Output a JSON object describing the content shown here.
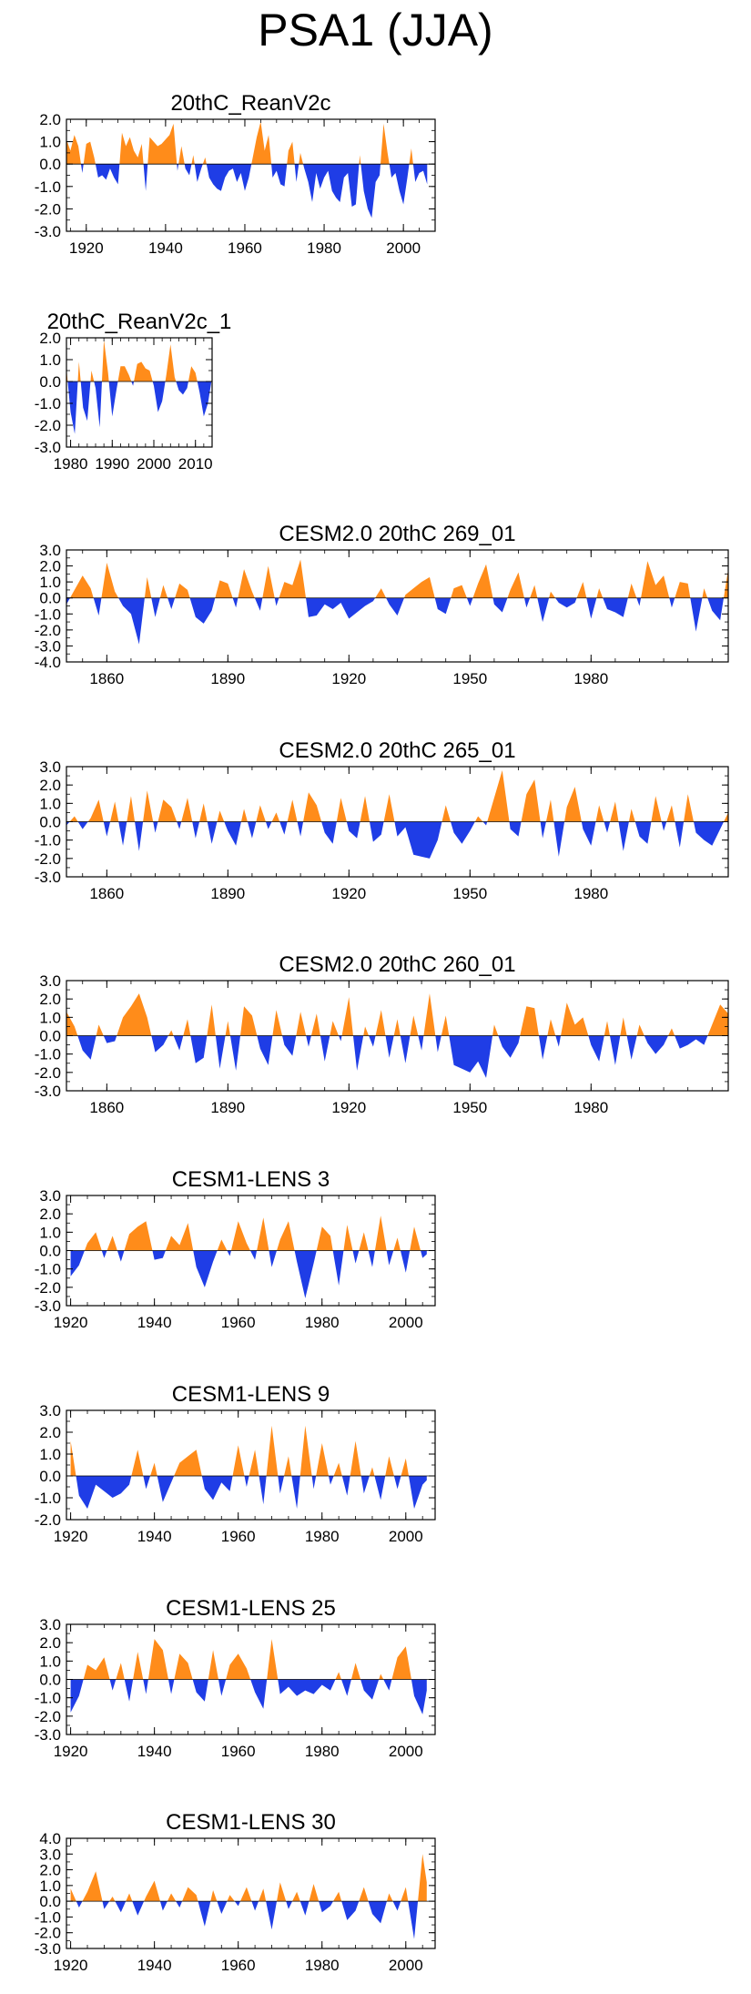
{
  "page_title": "PSA1 (JJA)",
  "colors": {
    "positive": "#ff8c1a",
    "negative": "#1f3de6",
    "axis": "#000000"
  },
  "chart_data": [
    {
      "type": "area",
      "title": "20thC_ReanV2c",
      "xlim": [
        1915,
        2008
      ],
      "ylim": [
        -3.0,
        2.0
      ],
      "y_ticks": [
        "2.0",
        "1.0",
        "0.0",
        "-1.0",
        "-2.0",
        "-3.0"
      ],
      "x_ticks": [
        "1920",
        "1940",
        "1960",
        "1980",
        "2000"
      ],
      "x": [
        1915,
        1916,
        1917,
        1918,
        1919,
        1920,
        1921,
        1922,
        1923,
        1924,
        1925,
        1926,
        1927,
        1928,
        1929,
        1930,
        1931,
        1932,
        1933,
        1934,
        1935,
        1936,
        1937,
        1938,
        1939,
        1940,
        1941,
        1942,
        1943,
        1944,
        1945,
        1946,
        1947,
        1948,
        1949,
        1950,
        1951,
        1952,
        1953,
        1954,
        1955,
        1956,
        1957,
        1958,
        1959,
        1960,
        1961,
        1962,
        1963,
        1964,
        1965,
        1966,
        1967,
        1968,
        1969,
        1970,
        1971,
        1972,
        1973,
        1974,
        1975,
        1976,
        1977,
        1978,
        1979,
        1980,
        1981,
        1982,
        1983,
        1984,
        1985,
        1986,
        1987,
        1988,
        1989,
        1990,
        1991,
        1992,
        1993,
        1994,
        1995,
        1996,
        1997,
        1998,
        1999,
        2000,
        2001,
        2002,
        2003,
        2004,
        2005,
        2006
      ],
      "values": [
        1.1,
        0.6,
        1.3,
        0.8,
        -0.4,
        0.9,
        1.0,
        0.3,
        -0.6,
        -0.5,
        -0.7,
        -0.2,
        -0.6,
        -0.9,
        1.4,
        0.8,
        1.2,
        0.6,
        0.3,
        0.9,
        -1.2,
        1.2,
        1.0,
        0.8,
        0.9,
        1.1,
        1.3,
        1.8,
        -0.3,
        0.8,
        -0.2,
        -0.5,
        0.4,
        -0.8,
        -0.2,
        0.3,
        -0.6,
        -0.9,
        -1.1,
        -1.2,
        -0.6,
        -0.3,
        -0.2,
        -0.8,
        -0.4,
        -1.2,
        -0.6,
        0.3,
        1.2,
        1.9,
        0.6,
        1.3,
        -0.6,
        -0.3,
        -0.9,
        -1.0,
        0.6,
        1.0,
        -0.8,
        0.5,
        -0.2,
        -0.8,
        -1.7,
        -0.4,
        -1.1,
        -0.6,
        -0.3,
        -1.2,
        -1.5,
        -1.7,
        -0.6,
        -0.4,
        -1.9,
        -1.8,
        0.4,
        -1.2,
        -2.0,
        -2.4,
        -0.8,
        -0.5,
        1.8,
        0.5,
        -0.6,
        -0.4,
        -1.2,
        -1.8,
        -0.6,
        0.7,
        -0.8,
        -0.4,
        -0.3,
        -0.9
      ]
    },
    {
      "type": "area",
      "title": "20thC_ReanV2c_1",
      "xlim": [
        1979,
        2014
      ],
      "ylim": [
        -3.0,
        2.0
      ],
      "y_ticks": [
        "2.0",
        "1.0",
        "0.0",
        "-1.0",
        "-2.0",
        "-3.0"
      ],
      "x_ticks": [
        "1980",
        "1990",
        "2000",
        "2010"
      ],
      "x": [
        1979,
        1980,
        1981,
        1982,
        1983,
        1984,
        1985,
        1986,
        1987,
        1988,
        1989,
        1990,
        1991,
        1992,
        1993,
        1994,
        1995,
        1996,
        1997,
        1998,
        1999,
        2000,
        2001,
        2002,
        2003,
        2004,
        2005,
        2006,
        2007,
        2008,
        2009,
        2010,
        2011,
        2012,
        2013,
        2014
      ],
      "values": [
        0.6,
        -1.4,
        -2.4,
        0.9,
        -1.2,
        -1.8,
        0.5,
        -0.3,
        -2.1,
        1.9,
        0.4,
        -1.6,
        -0.4,
        0.7,
        0.7,
        0.3,
        -0.2,
        0.8,
        0.9,
        0.6,
        0.5,
        -0.2,
        -1.4,
        -0.9,
        0.3,
        1.7,
        0.2,
        -0.4,
        -0.6,
        -0.3,
        0.7,
        0.4,
        -0.5,
        -1.6,
        -1.0,
        0.2
      ]
    },
    {
      "type": "area",
      "title": "CESM2.0 20thC 269_01",
      "xlim": [
        1850,
        2014
      ],
      "ylim": [
        -4.0,
        3.0
      ],
      "y_ticks": [
        "3.0",
        "2.0",
        "1.0",
        "0.0",
        "-1.0",
        "-2.0",
        "-3.0",
        "-4.0"
      ],
      "x_ticks": [
        "1860",
        "1890",
        "1920",
        "1950",
        "1980"
      ],
      "x": [
        1850,
        1852,
        1854,
        1856,
        1858,
        1860,
        1862,
        1864,
        1866,
        1868,
        1870,
        1872,
        1874,
        1876,
        1878,
        1880,
        1882,
        1884,
        1886,
        1888,
        1890,
        1892,
        1894,
        1896,
        1898,
        1900,
        1902,
        1904,
        1906,
        1908,
        1910,
        1912,
        1914,
        1916,
        1918,
        1920,
        1922,
        1924,
        1926,
        1928,
        1930,
        1932,
        1934,
        1936,
        1938,
        1940,
        1942,
        1944,
        1946,
        1948,
        1950,
        1952,
        1954,
        1956,
        1958,
        1960,
        1962,
        1964,
        1966,
        1968,
        1970,
        1972,
        1974,
        1976,
        1978,
        1980,
        1982,
        1984,
        1986,
        1988,
        1990,
        1992,
        1994,
        1996,
        1998,
        2000,
        2002,
        2004,
        2006,
        2008,
        2010,
        2012,
        2014
      ],
      "values": [
        -0.4,
        0.5,
        1.4,
        0.6,
        -1.1,
        2.2,
        0.4,
        -0.5,
        -1.0,
        -2.9,
        1.3,
        -1.2,
        0.8,
        -0.7,
        0.9,
        0.5,
        -1.2,
        -1.6,
        -0.8,
        1.1,
        0.9,
        -0.6,
        1.8,
        0.4,
        -0.8,
        2.0,
        -0.5,
        1.0,
        0.8,
        2.4,
        -1.2,
        -1.1,
        -0.4,
        -0.7,
        -0.3,
        -1.3,
        -0.9,
        -0.5,
        -0.2,
        0.6,
        -0.4,
        -1.1,
        0.2,
        0.6,
        1.0,
        1.3,
        -0.7,
        -1.0,
        0.6,
        0.8,
        -0.5,
        0.9,
        2.1,
        -0.4,
        -0.9,
        0.5,
        1.6,
        -0.6,
        0.8,
        -1.5,
        0.4,
        -0.3,
        -0.6,
        -0.3,
        1.0,
        -1.3,
        0.6,
        -0.7,
        -0.9,
        -1.2,
        0.9,
        -0.5,
        2.3,
        0.8,
        1.4,
        -0.6,
        1.0,
        0.9,
        -2.1,
        0.6,
        -0.8,
        -1.4,
        1.8
      ]
    },
    {
      "type": "area",
      "title": "CESM2.0 20thC 265_01",
      "xlim": [
        1850,
        2014
      ],
      "ylim": [
        -3.0,
        3.0
      ],
      "y_ticks": [
        "3.0",
        "2.0",
        "1.0",
        "0.0",
        "-1.0",
        "-2.0",
        "-3.0"
      ],
      "x_ticks": [
        "1860",
        "1890",
        "1920",
        "1950",
        "1980"
      ],
      "x": [
        1850,
        1852,
        1854,
        1856,
        1858,
        1860,
        1862,
        1864,
        1866,
        1868,
        1870,
        1872,
        1874,
        1876,
        1878,
        1880,
        1882,
        1884,
        1886,
        1888,
        1890,
        1892,
        1894,
        1896,
        1898,
        1900,
        1902,
        1904,
        1906,
        1908,
        1910,
        1912,
        1914,
        1916,
        1918,
        1920,
        1922,
        1924,
        1926,
        1928,
        1930,
        1932,
        1934,
        1936,
        1938,
        1940,
        1942,
        1944,
        1946,
        1948,
        1950,
        1952,
        1954,
        1956,
        1958,
        1960,
        1962,
        1964,
        1966,
        1968,
        1970,
        1972,
        1974,
        1976,
        1978,
        1980,
        1982,
        1984,
        1986,
        1988,
        1990,
        1992,
        1994,
        1996,
        1998,
        2000,
        2002,
        2004,
        2006,
        2008,
        2010,
        2012,
        2014
      ],
      "values": [
        -0.2,
        0.3,
        -0.4,
        0.2,
        1.2,
        -0.8,
        1.1,
        -1.3,
        1.4,
        -1.6,
        1.7,
        -0.6,
        1.2,
        0.8,
        -0.4,
        1.3,
        -0.9,
        1.0,
        -1.2,
        0.6,
        -0.5,
        -1.3,
        0.7,
        -0.9,
        0.9,
        -0.4,
        0.5,
        -0.7,
        1.2,
        -0.8,
        1.6,
        0.9,
        -0.6,
        -1.2,
        1.3,
        -0.5,
        -0.9,
        1.4,
        -1.1,
        -0.7,
        1.5,
        -0.8,
        -0.3,
        -1.8,
        -1.9,
        -2.0,
        -1.0,
        0.9,
        -0.6,
        -1.2,
        -0.5,
        0.3,
        -0.2,
        1.3,
        2.8,
        -0.4,
        -0.8,
        1.5,
        2.3,
        -0.9,
        1.2,
        -1.9,
        0.8,
        1.9,
        -0.4,
        -1.3,
        0.9,
        -0.6,
        1.1,
        -1.6,
        0.7,
        -0.8,
        -1.2,
        1.4,
        -0.5,
        0.9,
        -1.4,
        1.5,
        -0.6,
        -1.0,
        -1.3,
        -0.4,
        0.5
      ]
    },
    {
      "type": "area",
      "title": "CESM2.0 20thC 260_01",
      "xlim": [
        1850,
        2014
      ],
      "ylim": [
        -3.0,
        3.0
      ],
      "y_ticks": [
        "3.0",
        "2.0",
        "1.0",
        "0.0",
        "-1.0",
        "-2.0",
        "-3.0"
      ],
      "x_ticks": [
        "1860",
        "1890",
        "1920",
        "1950",
        "1980"
      ],
      "x": [
        1850,
        1852,
        1854,
        1856,
        1858,
        1860,
        1862,
        1864,
        1866,
        1868,
        1870,
        1872,
        1874,
        1876,
        1878,
        1880,
        1882,
        1884,
        1886,
        1888,
        1890,
        1892,
        1894,
        1896,
        1898,
        1900,
        1902,
        1904,
        1906,
        1908,
        1910,
        1912,
        1914,
        1916,
        1918,
        1920,
        1922,
        1924,
        1926,
        1928,
        1930,
        1932,
        1934,
        1936,
        1938,
        1940,
        1942,
        1944,
        1946,
        1948,
        1950,
        1952,
        1954,
        1956,
        1958,
        1960,
        1962,
        1964,
        1966,
        1968,
        1970,
        1972,
        1974,
        1976,
        1978,
        1980,
        1982,
        1984,
        1986,
        1988,
        1990,
        1992,
        1994,
        1996,
        1998,
        2000,
        2002,
        2004,
        2006,
        2008,
        2010,
        2012,
        2014
      ],
      "values": [
        1.3,
        0.5,
        -0.8,
        -1.3,
        0.6,
        -0.4,
        -0.3,
        1.0,
        1.6,
        2.3,
        1.0,
        -0.9,
        -0.5,
        0.3,
        -0.8,
        0.9,
        -1.5,
        -1.2,
        1.7,
        -1.8,
        0.8,
        -1.9,
        1.6,
        1.1,
        -0.7,
        -1.6,
        1.4,
        -0.5,
        -1.1,
        1.3,
        -0.6,
        1.2,
        -1.4,
        0.8,
        -0.3,
        2.1,
        -1.9,
        0.5,
        -0.6,
        1.4,
        -1.2,
        0.9,
        -1.5,
        1.1,
        -0.8,
        2.3,
        -0.9,
        1.1,
        -1.6,
        -1.8,
        -2.0,
        -1.4,
        -2.3,
        0.6,
        -0.6,
        -1.2,
        -0.4,
        1.6,
        1.5,
        -1.3,
        0.9,
        -0.6,
        1.8,
        0.6,
        1.0,
        -0.5,
        -1.4,
        0.8,
        -1.6,
        1.0,
        -1.3,
        0.6,
        -0.4,
        -1.0,
        -0.5,
        0.4,
        -0.7,
        -0.5,
        -0.2,
        -0.5,
        0.6,
        1.7,
        1.2
      ]
    },
    {
      "type": "area",
      "title": "CESM1-LENS 3",
      "xlim": [
        1919,
        2007
      ],
      "ylim": [
        -3.0,
        3.0
      ],
      "y_ticks": [
        "3.0",
        "2.0",
        "1.0",
        "0.0",
        "-1.0",
        "-2.0",
        "-3.0"
      ],
      "x_ticks": [
        "1920",
        "1940",
        "1960",
        "1980",
        "2000"
      ],
      "x": [
        1920,
        1922,
        1924,
        1926,
        1928,
        1930,
        1932,
        1934,
        1936,
        1938,
        1940,
        1942,
        1944,
        1946,
        1948,
        1950,
        1952,
        1954,
        1956,
        1958,
        1960,
        1962,
        1964,
        1966,
        1968,
        1970,
        1972,
        1974,
        1976,
        1978,
        1980,
        1982,
        1984,
        1986,
        1988,
        1990,
        1992,
        1994,
        1996,
        1998,
        2000,
        2002,
        2004,
        2005
      ],
      "values": [
        -1.4,
        -0.8,
        0.4,
        1.0,
        -0.4,
        0.8,
        -0.6,
        0.9,
        1.3,
        1.6,
        -0.5,
        -0.4,
        0.8,
        0.3,
        1.5,
        -0.9,
        -2.0,
        -0.6,
        0.6,
        -0.3,
        1.6,
        0.4,
        -0.5,
        1.8,
        -0.9,
        0.6,
        1.6,
        -0.6,
        -2.6,
        -0.7,
        1.3,
        0.8,
        -1.9,
        1.4,
        -0.7,
        1.0,
        -0.9,
        1.9,
        -0.8,
        0.7,
        -1.2,
        1.3,
        -0.4,
        -0.2
      ]
    },
    {
      "type": "area",
      "title": "CESM1-LENS 9",
      "xlim": [
        1919,
        2007
      ],
      "ylim": [
        -2.0,
        3.0
      ],
      "y_ticks": [
        "3.0",
        "2.0",
        "1.0",
        "0.0",
        "-1.0",
        "-2.0"
      ],
      "x_ticks": [
        "1920",
        "1940",
        "1960",
        "1980",
        "2000"
      ],
      "x": [
        1920,
        1922,
        1924,
        1926,
        1928,
        1930,
        1932,
        1934,
        1936,
        1938,
        1940,
        1942,
        1944,
        1946,
        1948,
        1950,
        1952,
        1954,
        1956,
        1958,
        1960,
        1962,
        1964,
        1966,
        1968,
        1970,
        1972,
        1974,
        1976,
        1978,
        1980,
        1982,
        1984,
        1986,
        1988,
        1990,
        1992,
        1994,
        1996,
        1998,
        2000,
        2002,
        2004,
        2005
      ],
      "values": [
        1.6,
        -0.9,
        -1.5,
        -0.4,
        -0.7,
        -1.0,
        -0.8,
        -0.4,
        1.2,
        -0.6,
        0.6,
        -1.2,
        -0.3,
        0.6,
        0.9,
        1.2,
        -0.6,
        -1.1,
        -0.3,
        -0.7,
        1.4,
        -0.5,
        1.2,
        -1.3,
        2.3,
        -0.8,
        0.9,
        -1.5,
        2.3,
        -0.6,
        1.5,
        -0.4,
        0.6,
        -0.9,
        1.6,
        -0.8,
        0.4,
        -1.1,
        0.9,
        -0.6,
        0.8,
        -1.5,
        -0.4,
        -0.2
      ]
    },
    {
      "type": "area",
      "title": "CESM1-LENS 25",
      "xlim": [
        1919,
        2007
      ],
      "ylim": [
        -3.0,
        3.0
      ],
      "y_ticks": [
        "3.0",
        "2.0",
        "1.0",
        "0.0",
        "-1.0",
        "-2.0",
        "-3.0"
      ],
      "x_ticks": [
        "1920",
        "1940",
        "1960",
        "1980",
        "2000"
      ],
      "x": [
        1920,
        1922,
        1924,
        1926,
        1928,
        1930,
        1932,
        1934,
        1936,
        1938,
        1940,
        1942,
        1944,
        1946,
        1948,
        1950,
        1952,
        1954,
        1956,
        1958,
        1960,
        1962,
        1964,
        1966,
        1968,
        1970,
        1972,
        1974,
        1976,
        1978,
        1980,
        1982,
        1984,
        1986,
        1988,
        1990,
        1992,
        1994,
        1996,
        1998,
        2000,
        2002,
        2004,
        2005
      ],
      "values": [
        -1.8,
        -0.9,
        0.8,
        0.5,
        1.2,
        -0.6,
        0.9,
        -1.2,
        1.5,
        -0.8,
        2.2,
        1.6,
        -0.8,
        1.4,
        0.9,
        -0.7,
        -1.2,
        1.6,
        -0.9,
        0.8,
        1.4,
        0.6,
        -0.7,
        -1.6,
        2.2,
        -0.8,
        -0.4,
        -0.9,
        -0.6,
        -0.8,
        -0.3,
        -0.6,
        0.4,
        -0.9,
        0.9,
        -0.6,
        -1.1,
        0.3,
        -0.6,
        1.2,
        1.8,
        -0.9,
        -1.9,
        -0.6
      ]
    },
    {
      "type": "area",
      "title": "CESM1-LENS 30",
      "xlim": [
        1919,
        2007
      ],
      "ylim": [
        -3.0,
        4.0
      ],
      "y_ticks": [
        "4.0",
        "3.0",
        "2.0",
        "1.0",
        "0.0",
        "-1.0",
        "-2.0",
        "-3.0"
      ],
      "x_ticks": [
        "1920",
        "1940",
        "1960",
        "1980",
        "2000"
      ],
      "x": [
        1920,
        1922,
        1924,
        1926,
        1928,
        1930,
        1932,
        1934,
        1936,
        1938,
        1940,
        1942,
        1944,
        1946,
        1948,
        1950,
        1952,
        1954,
        1956,
        1958,
        1960,
        1962,
        1964,
        1966,
        1968,
        1970,
        1972,
        1974,
        1976,
        1978,
        1980,
        1982,
        1984,
        1986,
        1988,
        1990,
        1992,
        1994,
        1996,
        1998,
        2000,
        2002,
        2004,
        2005
      ],
      "values": [
        0.8,
        -0.4,
        0.6,
        1.9,
        -0.5,
        0.3,
        -0.7,
        0.5,
        -0.9,
        0.3,
        1.3,
        -0.6,
        0.5,
        -0.4,
        0.9,
        0.4,
        -1.6,
        0.7,
        -0.8,
        0.4,
        -0.3,
        0.9,
        -0.6,
        0.8,
        -1.8,
        1.2,
        -0.5,
        0.6,
        -0.9,
        1.1,
        -0.7,
        -0.3,
        0.6,
        -1.2,
        -0.6,
        0.9,
        -0.8,
        -1.4,
        0.5,
        -0.6,
        0.9,
        -2.4,
        3.0,
        1.2
      ]
    }
  ]
}
